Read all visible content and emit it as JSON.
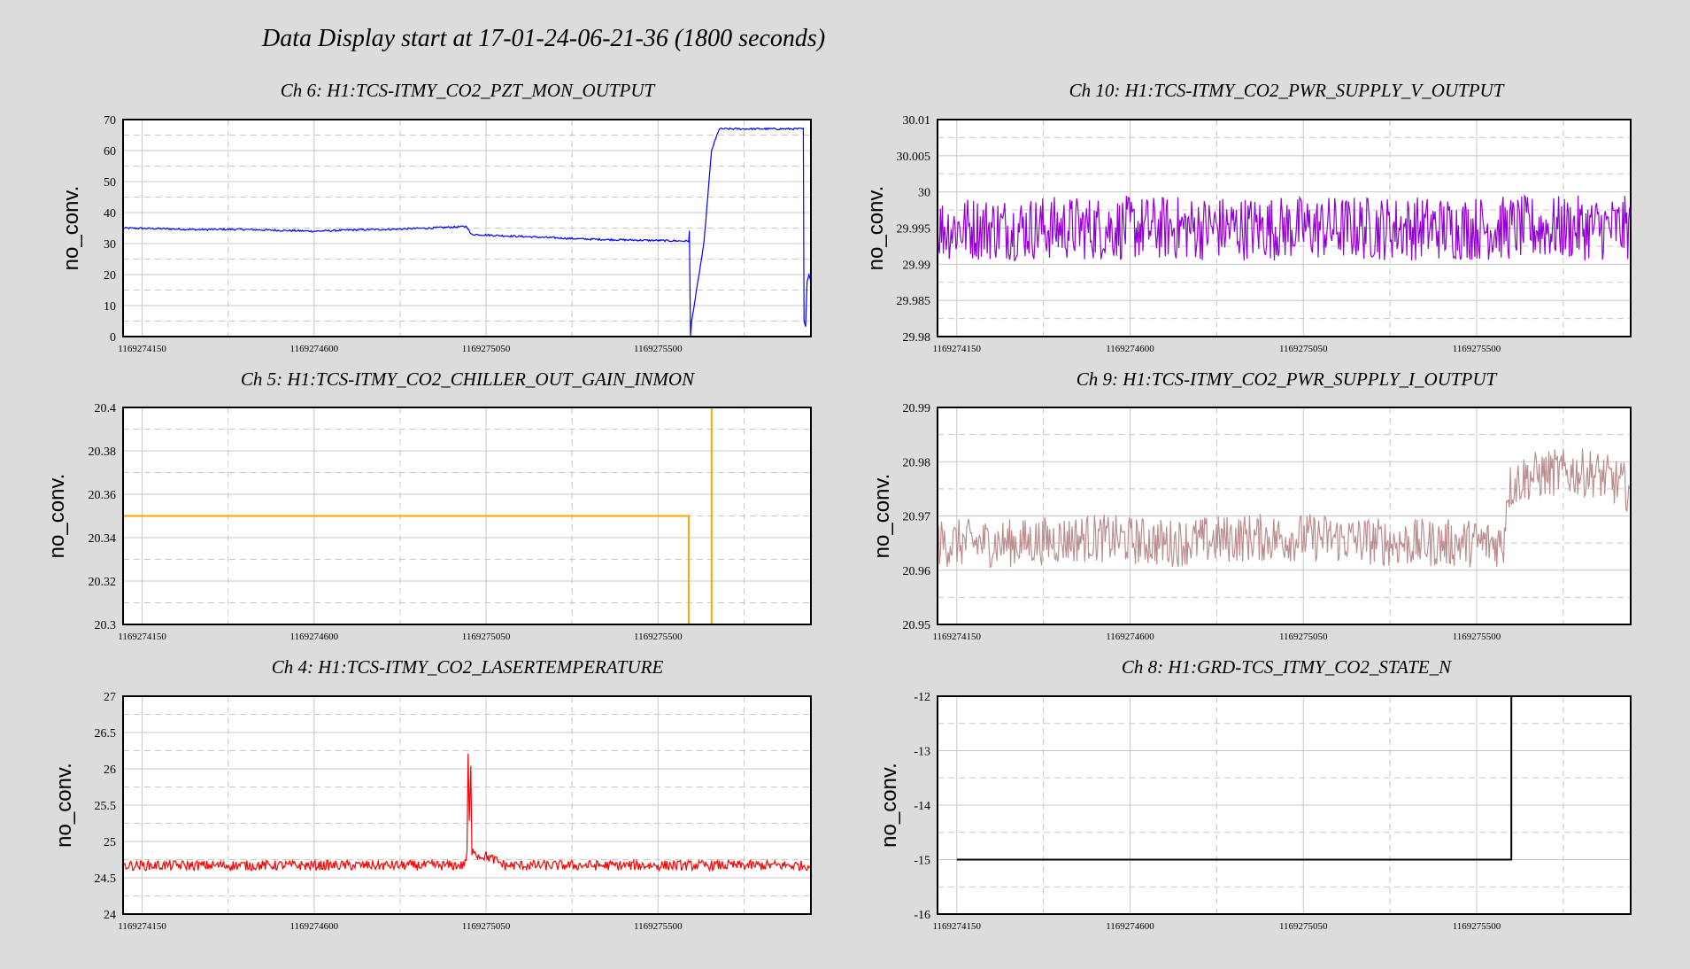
{
  "title": "Data Display start at 17-01-24-06-21-36 (1800 seconds)",
  "chart_data": [
    {
      "type": "line",
      "title": "Ch 6: H1:TCS-ITMY_CO2_PZT_MON_OUTPUT",
      "ylabel": "no_conv.",
      "ylim": [
        0,
        70
      ],
      "yticks": [
        "0",
        "10",
        "20",
        "30",
        "40",
        "50",
        "60",
        "70"
      ],
      "xlim": [
        1169274100,
        1169275900
      ],
      "xticks": [
        "1169274150",
        "1169274600",
        "1169275050",
        "1169275500"
      ],
      "color": "#0000ff",
      "noise": 0.3,
      "x": [
        1169274100,
        1169274200,
        1169274300,
        1169274400,
        1169274500,
        1169274600,
        1169274700,
        1169274800,
        1169274900,
        1169275000,
        1169275010,
        1169275100,
        1169275200,
        1169275300,
        1169275400,
        1169275500,
        1169275580,
        1169275582,
        1169275585,
        1169275588,
        1169275620,
        1169275640,
        1169275660,
        1169275700,
        1169275800,
        1169275880,
        1169275882,
        1169275886,
        1169275890,
        1169275895,
        1169275900
      ],
      "y": [
        35,
        34.8,
        34.5,
        34.6,
        34.3,
        34,
        34.4,
        34.6,
        35,
        35.5,
        33,
        32.5,
        32,
        31.5,
        31.2,
        31,
        30.8,
        34,
        0,
        5,
        30,
        60,
        67,
        67,
        67,
        67,
        5,
        3,
        18,
        20,
        18
      ]
    },
    {
      "type": "line",
      "title": "Ch 10: H1:TCS-ITMY_CO2_PWR_SUPPLY_V_OUTPUT",
      "ylabel": "no_conv.",
      "ylim": [
        29.98,
        30.01
      ],
      "yticks": [
        "29.98",
        "29.985",
        "29.99",
        "29.995",
        "30",
        "30.005",
        "30.01"
      ],
      "xlim": [
        1169274100,
        1169275900
      ],
      "xticks": [
        "1169274150",
        "1169274600",
        "1169275050",
        "1169275500"
      ],
      "color": "#9400d3",
      "noise": 0.0045,
      "x": [
        1169274100,
        1169275900
      ],
      "y": [
        29.995,
        29.995
      ]
    },
    {
      "type": "line",
      "title": "Ch 5: H1:TCS-ITMY_CO2_CHILLER_OUT_GAIN_INMON",
      "ylabel": "no_conv.",
      "ylim": [
        20.3,
        20.4
      ],
      "yticks": [
        "20.3",
        "20.32",
        "20.34",
        "20.36",
        "20.38",
        "20.4"
      ],
      "xlim": [
        1169274100,
        1169275900
      ],
      "xticks": [
        "1169274150",
        "1169274600",
        "1169275050",
        "1169275500"
      ],
      "color": "#ffa500",
      "noise": 0,
      "x": [
        1169274100,
        1169274700,
        1169275580,
        1169275580,
        1169275640,
        1169275640
      ],
      "y": [
        20.35,
        20.35,
        20.35,
        20.3,
        20.3,
        20.4
      ]
    },
    {
      "type": "line",
      "title": "Ch 9: H1:TCS-ITMY_CO2_PWR_SUPPLY_I_OUTPUT",
      "ylabel": "no_conv.",
      "ylim": [
        20.95,
        20.99
      ],
      "yticks": [
        "20.95",
        "20.96",
        "20.97",
        "20.98",
        "20.99"
      ],
      "xlim": [
        1169274100,
        1169275900
      ],
      "xticks": [
        "1169274150",
        "1169274600",
        "1169275050",
        "1169275500"
      ],
      "color": "#bc8f8f",
      "noise": 0.0045,
      "x": [
        1169274100,
        1169274300,
        1169274500,
        1169274700,
        1169274900,
        1169275100,
        1169275300,
        1169275500,
        1169275570,
        1169275580,
        1169275620,
        1169275700,
        1169275800,
        1169275900
      ],
      "y": [
        20.965,
        20.965,
        20.966,
        20.965,
        20.966,
        20.966,
        20.965,
        20.965,
        20.965,
        20.975,
        20.977,
        20.978,
        20.978,
        20.975
      ]
    },
    {
      "type": "line",
      "title": "Ch 4: H1:TCS-ITMY_CO2_LASERTEMPERATURE",
      "ylabel": "no_conv.",
      "ylim": [
        24,
        27
      ],
      "yticks": [
        "24",
        "24.5",
        "25",
        "25.5",
        "26",
        "26.5",
        "27"
      ],
      "xlim": [
        1169274100,
        1169275900
      ],
      "xticks": [
        "1169274150",
        "1169274600",
        "1169275050",
        "1169275500"
      ],
      "color": "#ff0000",
      "noise": 0.07,
      "x": [
        1169274100,
        1169274990,
        1169275000,
        1169275003,
        1169275006,
        1169275010,
        1169275013,
        1169275018,
        1169275030,
        1169275050,
        1169275100,
        1169275900
      ],
      "y": [
        24.67,
        24.67,
        24.8,
        26.2,
        25.3,
        26.0,
        24.8,
        24.9,
        24.8,
        24.8,
        24.67,
        24.67
      ]
    },
    {
      "type": "line",
      "title": "Ch 8: H1:GRD-TCS_ITMY_CO2_STATE_N",
      "ylabel": "no_conv.",
      "ylim": [
        -16,
        -12
      ],
      "yticks": [
        "-16",
        "-15",
        "-14",
        "-13",
        "-12"
      ],
      "xlim": [
        1169274100,
        1169275900
      ],
      "xticks": [
        "1169274150",
        "1169274600",
        "1169275050",
        "1169275500"
      ],
      "color": "#000000",
      "noise": 0,
      "x": [
        1169274150,
        1169275590,
        1169275590
      ],
      "y": [
        -15,
        -15,
        -12
      ]
    }
  ]
}
